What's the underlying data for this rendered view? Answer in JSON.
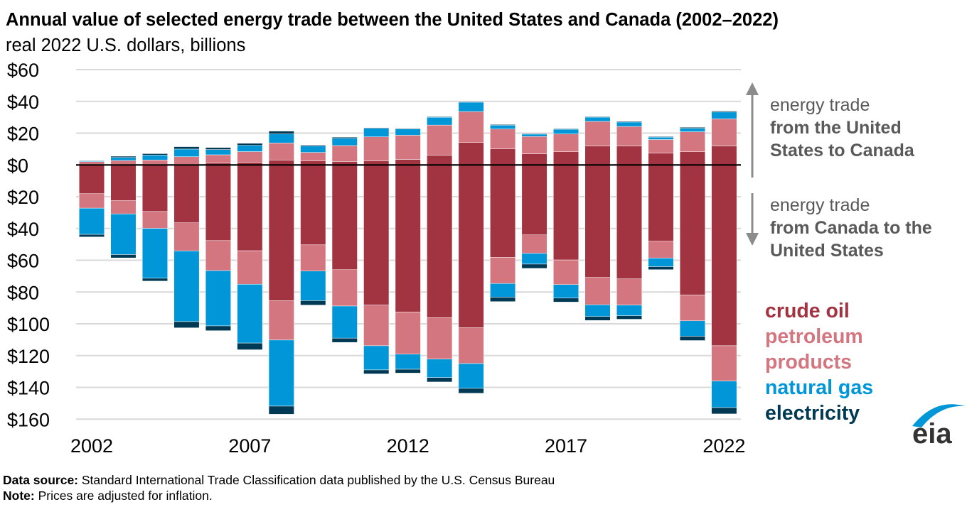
{
  "title": "Annual value of selected energy trade between the United States and Canada (2002–2022)",
  "subtitle": "real 2022 U.S. dollars, billions",
  "annotations": {
    "up_line1": "energy trade",
    "up_line2": "from the United",
    "up_line3": "States to Canada",
    "down_line1": "energy trade",
    "down_line2": "from Canada to the",
    "down_line3": "United States"
  },
  "legend": [
    {
      "label": "crude oil",
      "color": "#a23341"
    },
    {
      "label": "petroleum",
      "color": "#d47680"
    },
    {
      "label": "products",
      "color": "#d47680"
    },
    {
      "label": "natural gas",
      "color": "#0096d7"
    },
    {
      "label": "electricity",
      "color": "#003953"
    }
  ],
  "footer": {
    "source_label": "Data source:",
    "source_text": " Standard International Trade Classification data published by the U.S. Census Bureau",
    "note_label": "Note:",
    "note_text": " Prices are adjusted for inflation."
  },
  "logo": "eia",
  "chart_data": {
    "type": "bar",
    "stacked": true,
    "title": "Annual value of selected energy trade between the United States and Canada (2002–2022)",
    "ylabel": "real 2022 U.S. dollars, billions",
    "ylim": [
      -160,
      60
    ],
    "yticks": [
      60,
      40,
      20,
      0,
      -20,
      -40,
      -60,
      -80,
      -100,
      -120,
      -140,
      -160
    ],
    "ytick_labels": [
      "$60",
      "$40",
      "$20",
      "$0",
      "$20",
      "$40",
      "$60",
      "$80",
      "$100",
      "$120",
      "$140",
      "$160"
    ],
    "xtick_labels": [
      "2002",
      "2007",
      "2012",
      "2017",
      "2022"
    ],
    "grid": true,
    "categories": [
      2002,
      2003,
      2004,
      2005,
      2006,
      2007,
      2008,
      2009,
      2010,
      2011,
      2012,
      2013,
      2014,
      2015,
      2016,
      2017,
      2018,
      2019,
      2020,
      2021,
      2022
    ],
    "colors": {
      "crude oil": "#a23341",
      "petroleum products": "#d47680",
      "natural gas": "#0096d7",
      "electricity": "#003953"
    },
    "exports_us_to_canada": [
      {
        "name": "crude oil",
        "values": [
          0.3,
          0.3,
          0.3,
          0.3,
          1.3,
          1.6,
          3.1,
          2.5,
          2.2,
          2.5,
          3.4,
          6.2,
          14.1,
          10.1,
          7.0,
          8.3,
          11.9,
          11.9,
          7.4,
          8.3,
          11.9
        ]
      },
      {
        "name": "petroleum products",
        "values": [
          1.8,
          2.5,
          2.8,
          4.9,
          5.1,
          6.8,
          10.7,
          5.4,
          10.0,
          15.2,
          15.3,
          18.9,
          19.5,
          12.5,
          10.9,
          11.2,
          15.5,
          12.3,
          8.6,
          12.6,
          17.1
        ]
      },
      {
        "name": "natural gas",
        "values": [
          0.5,
          1.9,
          3.1,
          4.8,
          3.3,
          3.9,
          5.7,
          4.0,
          4.6,
          5.4,
          3.9,
          4.9,
          5.9,
          2.5,
          1.5,
          3.0,
          2.7,
          2.8,
          1.5,
          2.2,
          4.3
        ]
      },
      {
        "name": "electricity",
        "values": [
          0.3,
          0.8,
          0.9,
          1.5,
          1.3,
          1.3,
          1.8,
          0.6,
          0.7,
          0.4,
          0.4,
          0.4,
          0.4,
          0.4,
          0.4,
          0.4,
          0.4,
          0.5,
          0.4,
          0.6,
          0.6
        ]
      }
    ],
    "imports_canada_to_us": [
      {
        "name": "crude oil",
        "values": [
          18.1,
          22.5,
          29.3,
          36.4,
          47.6,
          54.0,
          85.5,
          50.3,
          65.9,
          88.2,
          92.6,
          96.2,
          102.5,
          58.2,
          44.0,
          59.8,
          70.8,
          71.7,
          48.0,
          81.9,
          113.8
        ]
      },
      {
        "name": "petroleum products",
        "values": [
          9.1,
          8.3,
          10.6,
          17.7,
          18.9,
          21.1,
          24.7,
          16.5,
          22.9,
          25.6,
          26.5,
          26.0,
          22.5,
          16.4,
          11.6,
          15.5,
          17.2,
          16.5,
          10.6,
          16.2,
          22.2
        ]
      },
      {
        "name": "natural gas",
        "values": [
          16.5,
          25.6,
          31.4,
          44.5,
          34.8,
          37.0,
          41.6,
          18.6,
          20.2,
          15.2,
          9.5,
          11.6,
          15.6,
          8.6,
          6.8,
          8.5,
          7.4,
          6.7,
          5.4,
          9.7,
          16.7
        ]
      },
      {
        "name": "electricity",
        "values": [
          1.6,
          2.1,
          1.8,
          3.9,
          3.0,
          4.2,
          5.1,
          2.8,
          2.7,
          2.5,
          2.4,
          2.8,
          3.1,
          2.8,
          2.7,
          2.5,
          2.5,
          2.2,
          1.9,
          2.7,
          4.0
        ]
      }
    ]
  }
}
